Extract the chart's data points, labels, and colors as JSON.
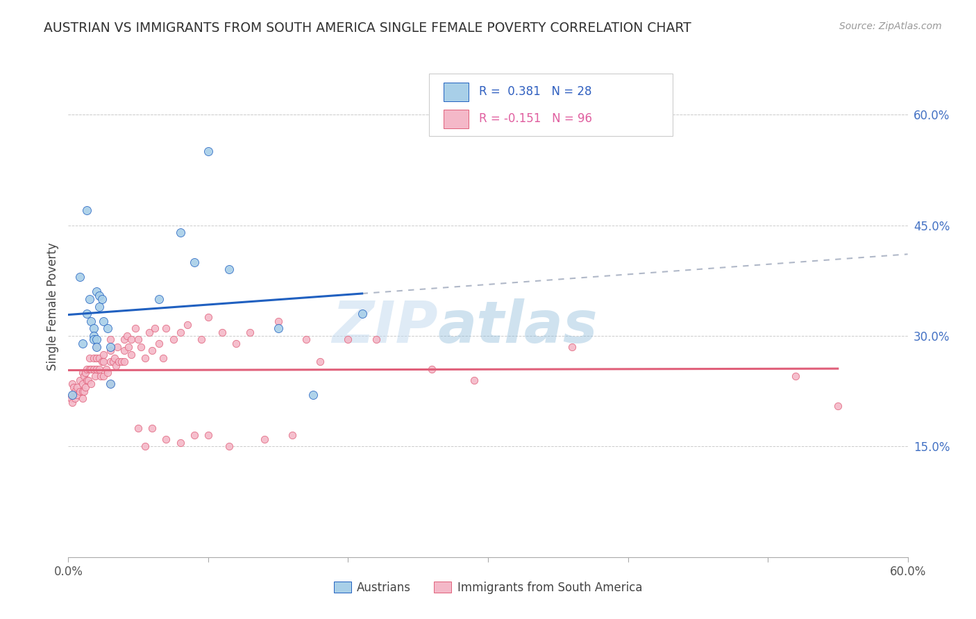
{
  "title": "AUSTRIAN VS IMMIGRANTS FROM SOUTH AMERICA SINGLE FEMALE POVERTY CORRELATION CHART",
  "source": "Source: ZipAtlas.com",
  "ylabel": "Single Female Poverty",
  "right_yticks": [
    "15.0%",
    "30.0%",
    "45.0%",
    "60.0%"
  ],
  "right_ytick_vals": [
    0.15,
    0.3,
    0.45,
    0.6
  ],
  "xlim": [
    0.0,
    0.6
  ],
  "ylim": [
    0.0,
    0.68
  ],
  "watermark_zip": "ZIP",
  "watermark_atlas": "atlas",
  "legend_text1": "R =  0.381   N = 28",
  "legend_text2": "R = -0.151   N = 96",
  "legend_label1": "Austrians",
  "legend_label2": "Immigrants from South America",
  "austrians_color": "#a8cfe8",
  "immigrants_color": "#f4b8c8",
  "trendline1_color": "#2060c0",
  "trendline2_color": "#e0607a",
  "trendline_dashed_color": "#b0b8c8",
  "legend_text_color": "#3060c0",
  "legend_text_color2": "#e060a0",
  "austrians_x": [
    0.003,
    0.008,
    0.01,
    0.013,
    0.013,
    0.015,
    0.016,
    0.018,
    0.018,
    0.018,
    0.02,
    0.02,
    0.02,
    0.022,
    0.022,
    0.024,
    0.025,
    0.028,
    0.03,
    0.03,
    0.065,
    0.08,
    0.09,
    0.1,
    0.115,
    0.15,
    0.175,
    0.21
  ],
  "austrians_y": [
    0.22,
    0.38,
    0.29,
    0.47,
    0.33,
    0.35,
    0.32,
    0.31,
    0.3,
    0.295,
    0.36,
    0.295,
    0.285,
    0.355,
    0.34,
    0.35,
    0.32,
    0.31,
    0.285,
    0.235,
    0.35,
    0.44,
    0.4,
    0.55,
    0.39,
    0.31,
    0.22,
    0.33
  ],
  "immigrants_x": [
    0.002,
    0.003,
    0.003,
    0.003,
    0.004,
    0.005,
    0.005,
    0.006,
    0.006,
    0.008,
    0.008,
    0.01,
    0.01,
    0.01,
    0.01,
    0.011,
    0.011,
    0.012,
    0.012,
    0.013,
    0.013,
    0.014,
    0.015,
    0.015,
    0.016,
    0.016,
    0.018,
    0.018,
    0.019,
    0.02,
    0.02,
    0.02,
    0.022,
    0.022,
    0.023,
    0.024,
    0.025,
    0.025,
    0.025,
    0.027,
    0.028,
    0.03,
    0.03,
    0.03,
    0.03,
    0.032,
    0.033,
    0.034,
    0.035,
    0.036,
    0.038,
    0.04,
    0.04,
    0.04,
    0.042,
    0.043,
    0.045,
    0.045,
    0.048,
    0.05,
    0.05,
    0.052,
    0.055,
    0.055,
    0.058,
    0.06,
    0.06,
    0.062,
    0.065,
    0.068,
    0.07,
    0.07,
    0.075,
    0.08,
    0.08,
    0.085,
    0.09,
    0.095,
    0.1,
    0.1,
    0.11,
    0.115,
    0.12,
    0.13,
    0.14,
    0.15,
    0.16,
    0.17,
    0.18,
    0.2,
    0.22,
    0.26,
    0.29,
    0.36,
    0.52,
    0.55
  ],
  "immigrants_y": [
    0.215,
    0.235,
    0.22,
    0.21,
    0.23,
    0.225,
    0.215,
    0.23,
    0.22,
    0.24,
    0.225,
    0.25,
    0.235,
    0.225,
    0.215,
    0.245,
    0.225,
    0.25,
    0.23,
    0.255,
    0.24,
    0.24,
    0.27,
    0.255,
    0.255,
    0.235,
    0.27,
    0.255,
    0.245,
    0.285,
    0.27,
    0.255,
    0.27,
    0.255,
    0.245,
    0.265,
    0.275,
    0.265,
    0.245,
    0.255,
    0.25,
    0.295,
    0.28,
    0.265,
    0.235,
    0.265,
    0.27,
    0.26,
    0.285,
    0.265,
    0.265,
    0.295,
    0.28,
    0.265,
    0.3,
    0.285,
    0.295,
    0.275,
    0.31,
    0.295,
    0.175,
    0.285,
    0.27,
    0.15,
    0.305,
    0.28,
    0.175,
    0.31,
    0.29,
    0.27,
    0.31,
    0.16,
    0.295,
    0.305,
    0.155,
    0.315,
    0.165,
    0.295,
    0.325,
    0.165,
    0.305,
    0.15,
    0.29,
    0.305,
    0.16,
    0.32,
    0.165,
    0.295,
    0.265,
    0.295,
    0.295,
    0.255,
    0.24,
    0.285,
    0.245,
    0.205
  ]
}
